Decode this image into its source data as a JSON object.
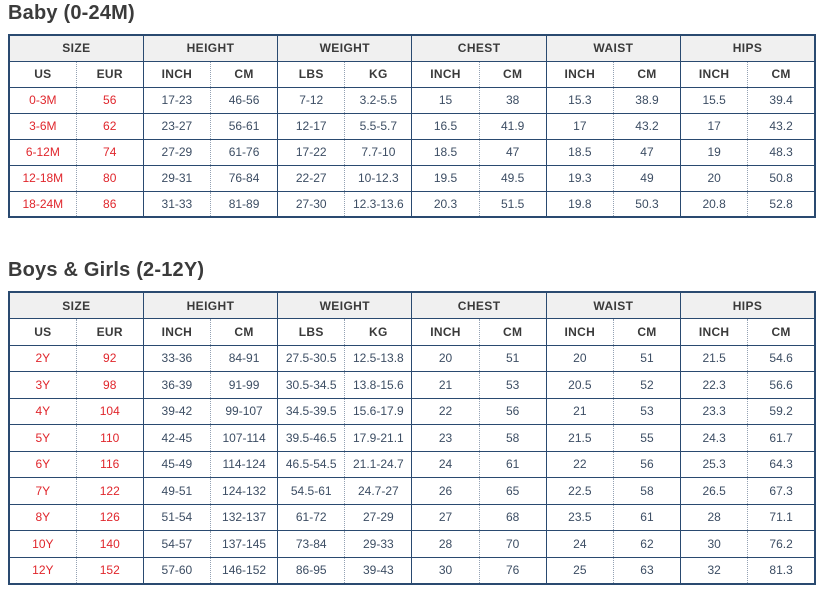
{
  "colors": {
    "border": "#2a4a70",
    "dotted": "#93a1b3",
    "header_bg": "#f0f0f0",
    "header_text": "#3a3a3a",
    "data_text": "#3c4d63",
    "size_text": "#e0262c",
    "title_text": "#3b3b3b",
    "page_bg": "#ffffff"
  },
  "tables": [
    {
      "title": "Baby (0-24M)",
      "groups": [
        "SIZE",
        "HEIGHT",
        "WEIGHT",
        "CHEST",
        "WAIST",
        "HIPS"
      ],
      "subheaders": [
        "US",
        "EUR",
        "INCH",
        "CM",
        "LBS",
        "KG",
        "INCH",
        "CM",
        "INCH",
        "CM",
        "INCH",
        "CM"
      ],
      "rows": [
        [
          "0-3M",
          "56",
          "17-23",
          "46-56",
          "7-12",
          "3.2-5.5",
          "15",
          "38",
          "15.3",
          "38.9",
          "15.5",
          "39.4"
        ],
        [
          "3-6M",
          "62",
          "23-27",
          "56-61",
          "12-17",
          "5.5-5.7",
          "16.5",
          "41.9",
          "17",
          "43.2",
          "17",
          "43.2"
        ],
        [
          "6-12M",
          "74",
          "27-29",
          "61-76",
          "17-22",
          "7.7-10",
          "18.5",
          "47",
          "18.5",
          "47",
          "19",
          "48.3"
        ],
        [
          "12-18M",
          "80",
          "29-31",
          "76-84",
          "22-27",
          "10-12.3",
          "19.5",
          "49.5",
          "19.3",
          "49",
          "20",
          "50.8"
        ],
        [
          "18-24M",
          "86",
          "31-33",
          "81-89",
          "27-30",
          "12.3-13.6",
          "20.3",
          "51.5",
          "19.8",
          "50.3",
          "20.8",
          "52.8"
        ]
      ]
    },
    {
      "title": "Boys & Girls (2-12Y)",
      "groups": [
        "SIZE",
        "HEIGHT",
        "WEIGHT",
        "CHEST",
        "WAIST",
        "HIPS"
      ],
      "subheaders": [
        "US",
        "EUR",
        "INCH",
        "CM",
        "LBS",
        "KG",
        "INCH",
        "CM",
        "INCH",
        "CM",
        "INCH",
        "CM"
      ],
      "rows": [
        [
          "2Y",
          "92",
          "33-36",
          "84-91",
          "27.5-30.5",
          "12.5-13.8",
          "20",
          "51",
          "20",
          "51",
          "21.5",
          "54.6"
        ],
        [
          "3Y",
          "98",
          "36-39",
          "91-99",
          "30.5-34.5",
          "13.8-15.6",
          "21",
          "53",
          "20.5",
          "52",
          "22.3",
          "56.6"
        ],
        [
          "4Y",
          "104",
          "39-42",
          "99-107",
          "34.5-39.5",
          "15.6-17.9",
          "22",
          "56",
          "21",
          "53",
          "23.3",
          "59.2"
        ],
        [
          "5Y",
          "110",
          "42-45",
          "107-114",
          "39.5-46.5",
          "17.9-21.1",
          "23",
          "58",
          "21.5",
          "55",
          "24.3",
          "61.7"
        ],
        [
          "6Y",
          "116",
          "45-49",
          "114-124",
          "46.5-54.5",
          "21.1-24.7",
          "24",
          "61",
          "22",
          "56",
          "25.3",
          "64.3"
        ],
        [
          "7Y",
          "122",
          "49-51",
          "124-132",
          "54.5-61",
          "24.7-27",
          "26",
          "65",
          "22.5",
          "58",
          "26.5",
          "67.3"
        ],
        [
          "8Y",
          "126",
          "51-54",
          "132-137",
          "61-72",
          "27-29",
          "27",
          "68",
          "23.5",
          "61",
          "28",
          "71.1"
        ],
        [
          "10Y",
          "140",
          "54-57",
          "137-145",
          "73-84",
          "29-33",
          "28",
          "70",
          "24",
          "62",
          "30",
          "76.2"
        ],
        [
          "12Y",
          "152",
          "57-60",
          "146-152",
          "86-95",
          "39-43",
          "30",
          "76",
          "25",
          "63",
          "32",
          "81.3"
        ]
      ]
    }
  ]
}
